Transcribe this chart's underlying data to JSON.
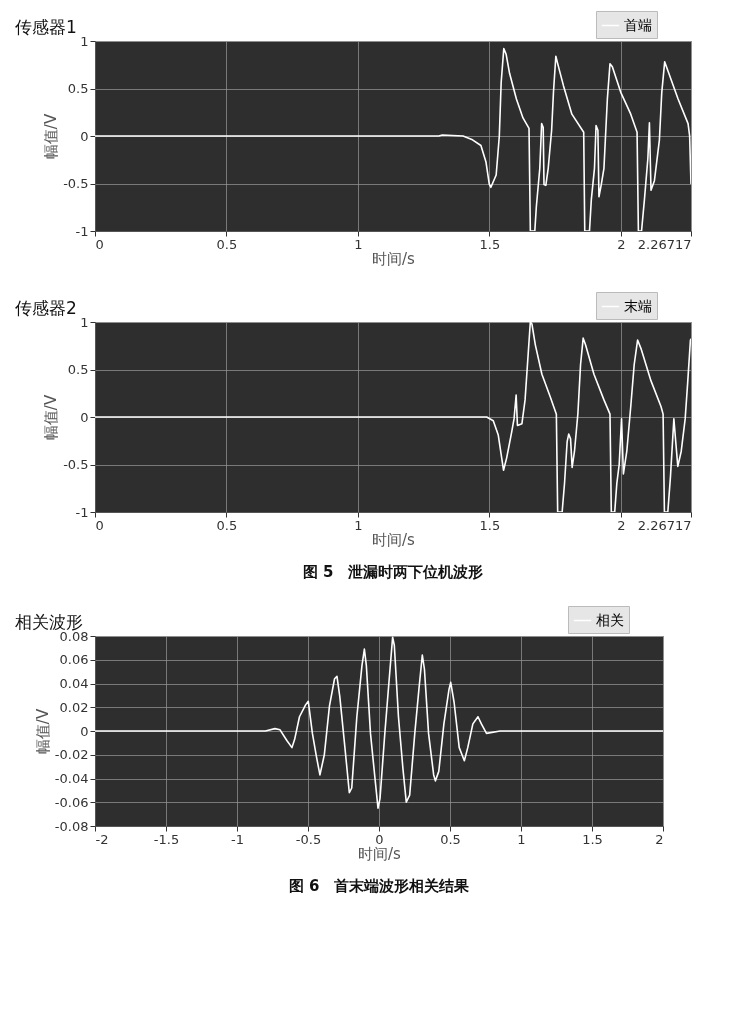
{
  "chart_data": [
    {
      "type": "line",
      "title": "传感器1",
      "xlabel": "时间/s",
      "ylabel": "幅值/V",
      "xlim": [
        0,
        2.26717
      ],
      "ylim": [
        -1,
        1
      ],
      "xticks": [
        0,
        0.5,
        1,
        1.5,
        2,
        2.26717
      ],
      "yticks": [
        -1,
        -0.5,
        0,
        0.5,
        1
      ],
      "grid": true,
      "legend": "top right",
      "series": [
        {
          "name": "首端",
          "color": "#ffffff",
          "x": [
            0,
            0.2,
            0.4,
            0.6,
            0.8,
            1.0,
            1.2,
            1.308,
            1.321,
            1.4,
            1.436,
            1.468,
            1.487,
            1.5,
            1.506,
            1.526,
            1.538,
            1.545,
            1.555,
            1.564,
            1.577,
            1.603,
            1.628,
            1.651,
            1.656,
            1.673,
            1.679,
            1.692,
            1.699,
            1.705,
            1.708,
            1.715,
            1.724,
            1.737,
            1.744,
            1.753,
            1.763,
            1.782,
            1.814,
            1.859,
            1.863,
            1.881,
            1.888,
            1.9,
            1.906,
            1.913,
            1.917,
            1.926,
            1.936,
            1.949,
            1.959,
            1.968,
            2.0,
            2.038,
            2.062,
            2.067,
            2.079,
            2.09,
            2.103,
            2.109,
            2.115,
            2.128,
            2.147,
            2.156,
            2.167,
            2.179,
            2.218,
            2.256,
            2.262,
            2.267
          ],
          "values": [
            0,
            0,
            0,
            0,
            0,
            0,
            0,
            0,
            0.01,
            0,
            -0.04,
            -0.1,
            -0.27,
            -0.51,
            -0.54,
            -0.41,
            0,
            0.56,
            0.92,
            0.86,
            0.66,
            0.39,
            0.19,
            0.08,
            -1,
            -1,
            -0.74,
            -0.34,
            0.13,
            0.09,
            -0.51,
            -0.52,
            -0.34,
            0.06,
            0.46,
            0.84,
            0.73,
            0.53,
            0.23,
            0.04,
            -1,
            -1,
            -0.67,
            -0.34,
            0.11,
            0.06,
            -0.64,
            -0.51,
            -0.34,
            0.39,
            0.76,
            0.73,
            0.46,
            0.23,
            0.04,
            -1,
            -1,
            -0.67,
            -0.24,
            0.14,
            -0.57,
            -0.47,
            -0.04,
            0.46,
            0.78,
            0.69,
            0.39,
            0.13,
            0,
            -0.5
          ]
        }
      ]
    },
    {
      "type": "line",
      "title": "传感器2",
      "xlabel": "时间/s",
      "ylabel": "幅值/V",
      "xlim": [
        0,
        2.26717
      ],
      "ylim": [
        -1,
        1
      ],
      "xticks": [
        0,
        0.5,
        1,
        1.5,
        2,
        2.26717
      ],
      "yticks": [
        -1,
        -0.5,
        0,
        0.5,
        1
      ],
      "grid": true,
      "legend": "top right",
      "annotations": [
        "图 5　泄漏时两下位机波形"
      ],
      "series": [
        {
          "name": "末端",
          "color": "#ffffff",
          "x": [
            0,
            0.2,
            0.4,
            0.6,
            0.8,
            1.0,
            1.2,
            1.4,
            1.49,
            1.515,
            1.534,
            1.547,
            1.554,
            1.566,
            1.585,
            1.594,
            1.602,
            1.607,
            1.624,
            1.636,
            1.645,
            1.656,
            1.662,
            1.675,
            1.7,
            1.732,
            1.755,
            1.76,
            1.777,
            1.786,
            1.796,
            1.802,
            1.809,
            1.815,
            1.824,
            1.837,
            1.847,
            1.857,
            1.866,
            1.898,
            1.936,
            1.959,
            1.964,
            1.977,
            1.985,
            1.994,
            2.003,
            2.01,
            2.023,
            2.038,
            2.051,
            2.064,
            2.077,
            2.115,
            2.153,
            2.161,
            2.166,
            2.179,
            2.189,
            2.202,
            2.21,
            2.217,
            2.23,
            2.245,
            2.255,
            2.265,
            2.267
          ],
          "values": [
            0,
            0,
            0,
            0,
            0,
            0,
            0,
            0,
            0,
            -0.04,
            -0.19,
            -0.43,
            -0.56,
            -0.43,
            -0.16,
            -0.02,
            0.23,
            -0.09,
            -0.07,
            0.18,
            0.55,
            1.0,
            0.98,
            0.76,
            0.45,
            0.21,
            0.03,
            -1,
            -1,
            -0.7,
            -0.26,
            -0.18,
            -0.23,
            -0.53,
            -0.36,
            0.04,
            0.55,
            0.83,
            0.76,
            0.45,
            0.18,
            0.03,
            -1,
            -1,
            -0.7,
            -0.5,
            -0.02,
            -0.6,
            -0.36,
            0.11,
            0.55,
            0.81,
            0.72,
            0.38,
            0.11,
            0.03,
            -1,
            -1,
            -0.63,
            -0.02,
            -0.29,
            -0.52,
            -0.36,
            -0.02,
            0.38,
            0.81,
            0.82
          ]
        }
      ]
    },
    {
      "type": "line",
      "title": "相关波形",
      "xlabel": "时间/s",
      "ylabel": "幅值/V",
      "xlim": [
        -2,
        2
      ],
      "ylim": [
        -0.08,
        0.08
      ],
      "xticks": [
        -2,
        -1.5,
        -1,
        -0.5,
        0,
        0.5,
        1,
        1.5,
        2
      ],
      "yticks": [
        -0.08,
        -0.06,
        -0.04,
        -0.02,
        0,
        0.02,
        0.04,
        0.06,
        0.08
      ],
      "grid": true,
      "legend": "top right",
      "annotations": [
        "图 6　首末端波形相关结果"
      ],
      "series": [
        {
          "name": "相关",
          "color": "#ffffff",
          "x": [
            -2,
            -1.5,
            -1,
            -0.8,
            -0.733,
            -0.697,
            -0.649,
            -0.613,
            -0.594,
            -0.56,
            -0.517,
            -0.498,
            -0.469,
            -0.44,
            -0.416,
            -0.385,
            -0.349,
            -0.313,
            -0.296,
            -0.276,
            -0.24,
            -0.209,
            -0.192,
            -0.156,
            -0.12,
            -0.103,
            -0.089,
            -0.06,
            -0.024,
            -0.007,
            0.007,
            0.041,
            0.072,
            0.096,
            0.108,
            0.137,
            0.168,
            0.192,
            0.216,
            0.252,
            0.281,
            0.305,
            0.32,
            0.349,
            0.385,
            0.397,
            0.421,
            0.457,
            0.493,
            0.505,
            0.529,
            0.565,
            0.601,
            0.625,
            0.661,
            0.697,
            0.721,
            0.757,
            0.853,
            1,
            1.5,
            2
          ],
          "values": [
            0,
            0,
            0,
            0,
            0.002,
            0.001,
            -0.008,
            -0.014,
            -0.007,
            0.012,
            0.022,
            0.025,
            -0.002,
            -0.022,
            -0.037,
            -0.02,
            0.021,
            0.044,
            0.046,
            0.029,
            -0.014,
            -0.052,
            -0.048,
            0.012,
            0.055,
            0.069,
            0.055,
            -0.002,
            -0.045,
            -0.065,
            -0.057,
            -0.002,
            0.044,
            0.079,
            0.072,
            0.012,
            -0.031,
            -0.06,
            -0.054,
            -0.002,
            0.035,
            0.064,
            0.052,
            -0.002,
            -0.037,
            -0.042,
            -0.034,
            0.006,
            0.035,
            0.041,
            0.024,
            -0.014,
            -0.025,
            -0.014,
            0.006,
            0.012,
            0.006,
            -0.002,
            0,
            0,
            0,
            0
          ]
        }
      ]
    }
  ]
}
